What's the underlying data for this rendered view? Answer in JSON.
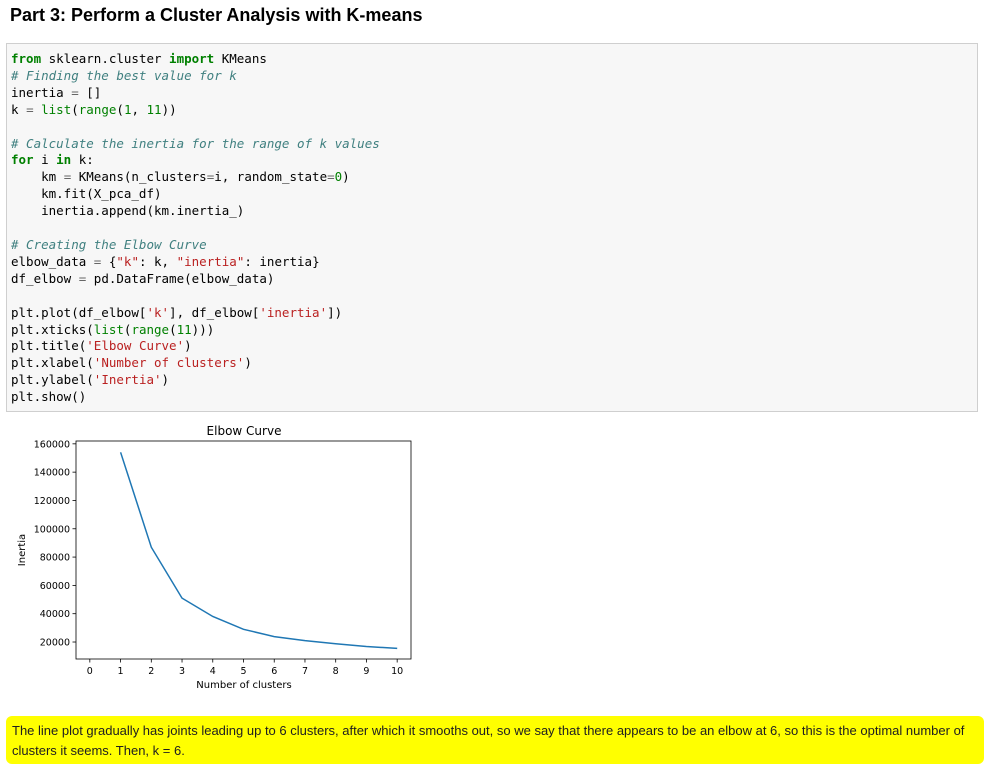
{
  "heading": "Part 3: Perform a Cluster Analysis with K-means",
  "code_lines": [
    "from sklearn.cluster import KMeans",
    "# Finding the best value for k",
    "inertia = []",
    "k = list(range(1, 11))",
    "",
    "# Calculate the inertia for the range of k values",
    "for i in k:",
    "    km = KMeans(n_clusters=i, random_state=0)",
    "    km.fit(X_pca_df)",
    "    inertia.append(km.inertia_)",
    "",
    "# Creating the Elbow Curve",
    "elbow_data = {\"k\": k, \"inertia\": inertia}",
    "df_elbow = pd.DataFrame(elbow_data)",
    "",
    "plt.plot(df_elbow['k'], df_elbow['inertia'])",
    "plt.xticks(list(range(11)))",
    "plt.title('Elbow Curve')",
    "plt.xlabel('Number of clusters')",
    "plt.ylabel('Inertia')",
    "plt.show()"
  ],
  "chart_data": {
    "type": "line",
    "title": "Elbow Curve",
    "xlabel": "Number of clusters",
    "ylabel": "Inertia",
    "x": [
      1,
      2,
      3,
      4,
      5,
      6,
      7,
      8,
      9,
      10
    ],
    "series": [
      {
        "values": [
          154000,
          87000,
          51000,
          38000,
          29000,
          23800,
          21000,
          18800,
          16800,
          15500
        ]
      }
    ],
    "xticks": [
      "0",
      "1",
      "2",
      "3",
      "4",
      "5",
      "6",
      "7",
      "8",
      "9",
      "10"
    ],
    "yticks": [
      "20000",
      "40000",
      "60000",
      "80000",
      "100000",
      "120000",
      "140000",
      "160000"
    ],
    "xlim": [
      -0.45,
      10.45
    ],
    "ylim": [
      8000,
      162000
    ],
    "line_color": "#1f77b4",
    "grid": false
  },
  "note_text": "The line plot gradually has joints leading up to 6 clusters, after which it smooths out, so we say that there appears to be an elbow at 6, so this is the optimal number of clusters it seems. Then, k = 6."
}
